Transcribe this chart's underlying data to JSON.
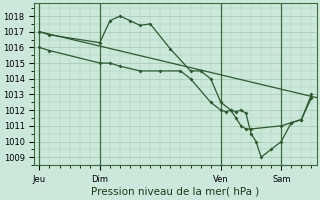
{
  "background_color": "#cce8da",
  "plot_bg": "#cce8da",
  "grid_color": "#aaccb8",
  "line_color": "#2d5a2d",
  "title": "Pression niveau de la mer( hPa )",
  "x_ticks_labels": [
    "Jeu",
    "Dim",
    "Ven",
    "Sam"
  ],
  "x_ticks_pos": [
    0,
    36,
    108,
    144
  ],
  "ylim": [
    1008.5,
    1018.8
  ],
  "yticks": [
    1009,
    1010,
    1011,
    1012,
    1013,
    1014,
    1015,
    1016,
    1017,
    1018
  ],
  "vlines_x": [
    0,
    36,
    108,
    144
  ],
  "xmin": -3,
  "xmax": 165,
  "line1_straight": [
    [
      0,
      1017.0
    ],
    [
      165,
      1012.8
    ]
  ],
  "line2": [
    [
      0,
      1017.0
    ],
    [
      6,
      1016.8
    ],
    [
      36,
      1016.3
    ],
    [
      42,
      1017.7
    ],
    [
      48,
      1018.0
    ],
    [
      54,
      1017.7
    ],
    [
      60,
      1017.4
    ],
    [
      66,
      1017.5
    ],
    [
      78,
      1015.9
    ],
    [
      90,
      1014.5
    ],
    [
      96,
      1014.5
    ],
    [
      102,
      1014.0
    ],
    [
      108,
      1012.5
    ],
    [
      114,
      1012.0
    ],
    [
      117,
      1011.9
    ],
    [
      120,
      1012.0
    ],
    [
      123,
      1011.8
    ],
    [
      126,
      1010.5
    ],
    [
      129,
      1010.0
    ],
    [
      132,
      1009.0
    ],
    [
      138,
      1009.5
    ],
    [
      144,
      1010.0
    ],
    [
      150,
      1011.2
    ],
    [
      156,
      1011.4
    ],
    [
      162,
      1013.0
    ]
  ],
  "line3": [
    [
      0,
      1016.0
    ],
    [
      6,
      1015.8
    ],
    [
      36,
      1015.0
    ],
    [
      42,
      1015.0
    ],
    [
      48,
      1014.8
    ],
    [
      60,
      1014.5
    ],
    [
      72,
      1014.5
    ],
    [
      84,
      1014.5
    ],
    [
      90,
      1014.0
    ],
    [
      102,
      1012.5
    ],
    [
      108,
      1012.0
    ],
    [
      111,
      1011.9
    ],
    [
      114,
      1012.0
    ],
    [
      117,
      1011.5
    ],
    [
      120,
      1011.0
    ],
    [
      123,
      1010.8
    ],
    [
      126,
      1010.8
    ],
    [
      144,
      1011.0
    ],
    [
      150,
      1011.2
    ],
    [
      156,
      1011.4
    ],
    [
      162,
      1012.8
    ]
  ],
  "title_fontsize": 7.5,
  "tick_fontsize": 6.0
}
